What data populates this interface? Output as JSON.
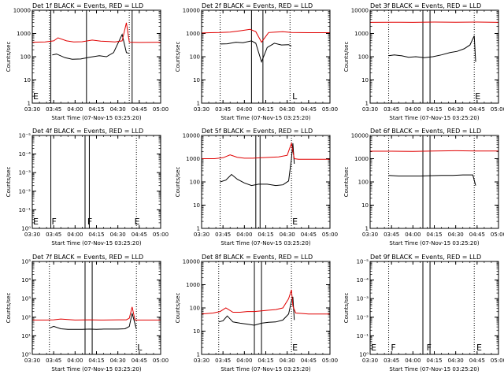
{
  "chart_data": [
    {
      "type": "line",
      "title": "Det 1f BLACK = Events, RED = LLD",
      "xlabel": "Start Time (07-Nov-15 03:25:20)",
      "ylabel": "Counts/sec",
      "scale": "log",
      "ylim": [
        1,
        10000
      ],
      "yticks": [
        "1",
        "10",
        "100",
        "1000",
        "10000"
      ],
      "xlim": [
        "03:30",
        "05:00"
      ],
      "xticks": [
        "03:30",
        "03:45",
        "04:00",
        "04:15",
        "04:30",
        "04:45",
        "05:00"
      ],
      "solid_markers": [
        "03:43",
        "04:08",
        "04:40"
      ],
      "dotted_markers": [
        "03:42",
        "04:38"
      ],
      "flag_labels": [
        [
          "03:30",
          "E"
        ]
      ],
      "series": [
        {
          "name": "Events",
          "color": "#000000",
          "x": [
            "03:44",
            "03:47",
            "03:53",
            "03:58",
            "04:04",
            "04:10",
            "04:17",
            "04:22",
            "04:27",
            "04:33",
            "04:36",
            "04:38"
          ],
          "y": [
            120,
            130,
            90,
            78,
            80,
            95,
            110,
            100,
            150,
            900,
            150,
            140
          ]
        },
        {
          "name": "LLD",
          "color": "#e00000",
          "x": [
            "03:30",
            "03:39",
            "03:45",
            "03:48",
            "03:54",
            "03:59",
            "04:05",
            "04:12",
            "04:18",
            "04:24",
            "04:28",
            "04:33",
            "04:36",
            "04:38",
            "04:45",
            "05:00"
          ],
          "y": [
            420,
            430,
            480,
            650,
            480,
            430,
            440,
            520,
            470,
            450,
            430,
            480,
            2900,
            420,
            410,
            420
          ]
        }
      ]
    },
    {
      "type": "line",
      "title": "Det 2f BLACK = Events, RED = LLD",
      "xlabel": "Start Time (07-Nov-15 03:25:20)",
      "ylabel": "Counts/sec",
      "scale": "log",
      "ylim": [
        1,
        10000
      ],
      "yticks": [
        "1",
        "10",
        "100",
        "1000",
        "10000"
      ],
      "xlim": [
        "03:30",
        "05:00"
      ],
      "xticks": [
        "03:30",
        "03:45",
        "04:00",
        "04:15",
        "04:30",
        "04:45",
        "05:00"
      ],
      "solid_markers": [
        "04:05",
        "04:13"
      ],
      "dotted_markers": [
        "03:43",
        "04:32"
      ],
      "flag_labels": [
        [
          "04:33",
          "L"
        ]
      ],
      "series": [
        {
          "name": "Events",
          "color": "#000000",
          "x": [
            "03:43",
            "03:48",
            "03:54",
            "03:59",
            "04:05",
            "04:08",
            "04:12",
            "04:16",
            "04:21",
            "04:26",
            "04:31",
            "04:33"
          ],
          "y": [
            350,
            360,
            420,
            400,
            480,
            380,
            60,
            250,
            380,
            320,
            330,
            290
          ]
        },
        {
          "name": "LLD",
          "color": "#e00000",
          "x": [
            "03:30",
            "03:36",
            "03:43",
            "03:50",
            "03:57",
            "04:04",
            "04:08",
            "04:12",
            "04:17",
            "04:22",
            "04:27",
            "04:33",
            "04:45",
            "05:00"
          ],
          "y": [
            1050,
            1080,
            1100,
            1150,
            1300,
            1500,
            1200,
            420,
            1100,
            1150,
            1200,
            1100,
            1080,
            1080
          ]
        }
      ]
    },
    {
      "type": "line",
      "title": "Det 3f BLACK = Events, RED = LLD",
      "xlabel": "Start Time (07-Nov-15 03:25:20)",
      "ylabel": "Counts/sec",
      "scale": "log",
      "ylim": [
        1,
        10000
      ],
      "yticks": [
        "1",
        "10",
        "100",
        "1000",
        "10000"
      ],
      "xlim": [
        "03:30",
        "05:00"
      ],
      "xticks": [
        "03:30",
        "03:45",
        "04:00",
        "04:15",
        "04:30",
        "04:45",
        "05:00"
      ],
      "solid_markers": [
        "04:07",
        "04:12"
      ],
      "dotted_markers": [
        "03:43",
        "04:43"
      ],
      "flag_labels": [
        [
          "04:43",
          "E"
        ]
      ],
      "series": [
        {
          "name": "Events",
          "color": "#000000",
          "x": [
            "03:43",
            "03:47",
            "03:52",
            "03:57",
            "04:02",
            "04:08",
            "04:14",
            "04:20",
            "04:26",
            "04:31",
            "04:36",
            "04:40",
            "04:43",
            "04:44"
          ],
          "y": [
            110,
            120,
            110,
            95,
            100,
            90,
            100,
            120,
            150,
            170,
            220,
            320,
            800,
            60
          ]
        },
        {
          "name": "LLD",
          "color": "#e00000",
          "x": [
            "03:30",
            "03:45",
            "04:00",
            "04:15",
            "04:30",
            "04:45",
            "05:00"
          ],
          "y": [
            3000,
            3050,
            3000,
            3100,
            3050,
            3100,
            3000
          ]
        }
      ]
    },
    {
      "type": "line",
      "title": "Det 4f BLACK = Events, RED = LLD",
      "xlabel": "Start Time (07-Nov-15 03:25:20)",
      "ylabel": "Counts/sec",
      "scale": "log",
      "ylim": [
        1,
        10000000000
      ],
      "yticks": [
        "10⁰",
        "10⁻¹",
        "10⁻²",
        "10⁻³",
        "10⁻⁴",
        "10⁻⁵"
      ],
      "xlim": [
        "03:30",
        "05:00"
      ],
      "xticks": [
        "03:30",
        "03:45",
        "04:00",
        "04:15",
        "04:30",
        "04:45",
        "05:00"
      ],
      "solid_markers": [
        "03:43",
        "04:07",
        "04:10"
      ],
      "dotted_markers": [
        "04:43"
      ],
      "flag_labels": [
        [
          "03:30",
          "E"
        ],
        [
          "03:43",
          "F"
        ],
        [
          "04:08",
          "F"
        ],
        [
          "04:41",
          "E"
        ]
      ],
      "series": []
    },
    {
      "type": "line",
      "title": "Det 5f BLACK = Events, RED = LLD",
      "xlabel": "Start Time (07-Nov-15 03:25:20)",
      "ylabel": "Counts/sec",
      "scale": "log",
      "ylim": [
        1,
        10000
      ],
      "yticks": [
        "1",
        "10",
        "100",
        "1000",
        "10000"
      ],
      "xlim": [
        "03:30",
        "05:00"
      ],
      "xticks": [
        "03:30",
        "03:45",
        "04:00",
        "04:15",
        "04:30",
        "04:45",
        "05:00"
      ],
      "solid_markers": [
        "04:08",
        "04:11"
      ],
      "dotted_markers": [
        "03:43",
        "04:33"
      ],
      "flag_labels": [
        [
          "04:33",
          "E"
        ]
      ],
      "series": [
        {
          "name": "Events",
          "color": "#000000",
          "x": [
            "03:43",
            "03:47",
            "03:51",
            "03:55",
            "04:00",
            "04:05",
            "04:10",
            "04:16",
            "04:22",
            "04:27",
            "04:31",
            "04:33",
            "04:34",
            "04:35"
          ],
          "y": [
            100,
            120,
            210,
            130,
            90,
            70,
            80,
            80,
            70,
            75,
            110,
            1000,
            4600,
            600
          ]
        },
        {
          "name": "LLD",
          "color": "#e00000",
          "x": [
            "03:30",
            "03:39",
            "03:45",
            "03:50",
            "03:55",
            "04:00",
            "04:06",
            "04:12",
            "04:18",
            "04:24",
            "04:30",
            "04:33",
            "04:35",
            "04:38",
            "04:45",
            "05:00"
          ],
          "y": [
            1000,
            1000,
            1100,
            1450,
            1150,
            1050,
            1050,
            1100,
            1150,
            1200,
            1400,
            4600,
            1000,
            950,
            950,
            950
          ]
        }
      ]
    },
    {
      "type": "line",
      "title": "Det 6f BLACK = Events, RED = LLD",
      "xlabel": "Start Time (07-Nov-15 03:25:20)",
      "ylabel": "Counts/sec",
      "scale": "log",
      "ylim": [
        1,
        10000
      ],
      "yticks": [
        "1",
        "10",
        "100",
        "1000",
        "10000"
      ],
      "xlim": [
        "03:30",
        "05:00"
      ],
      "xticks": [
        "03:30",
        "03:45",
        "04:00",
        "04:15",
        "04:30",
        "04:45",
        "05:00"
      ],
      "solid_markers": [
        "04:07",
        "04:12"
      ],
      "dotted_markers": [
        "03:43",
        "04:43"
      ],
      "flag_labels": [],
      "series": [
        {
          "name": "Events",
          "color": "#000000",
          "x": [
            "03:43",
            "03:50",
            "03:57",
            "04:05",
            "04:12",
            "04:20",
            "04:28",
            "04:35",
            "04:42",
            "04:44"
          ],
          "y": [
            190,
            180,
            180,
            180,
            185,
            190,
            190,
            200,
            200,
            70
          ]
        },
        {
          "name": "LLD",
          "color": "#e00000",
          "x": [
            "03:30",
            "03:45",
            "04:00",
            "04:15",
            "04:30",
            "04:45",
            "05:00"
          ],
          "y": [
            2100,
            2100,
            2050,
            2150,
            2200,
            2150,
            2150
          ]
        }
      ]
    },
    {
      "type": "line",
      "title": "Det 7f BLACK = Events, RED = LLD",
      "xlabel": "Start Time (07-Nov-15 03:25:20)",
      "ylabel": "Counts/sec",
      "scale": "log",
      "ylim": [
        1,
        100000000
      ],
      "yticks": [
        "10⁰",
        "10¹",
        "10²",
        "10³",
        "10⁴",
        "10⁵"
      ],
      "xlim": [
        "03:30",
        "05:00"
      ],
      "xticks": [
        "03:30",
        "03:45",
        "04:00",
        "04:15",
        "04:30",
        "04:45",
        "05:00"
      ],
      "solid_markers": [
        "04:07",
        "04:12"
      ],
      "dotted_markers": [
        "03:42",
        "04:43"
      ],
      "flag_labels": [
        [
          "04:43",
          "L"
        ]
      ],
      "series": [
        {
          "name": "Events",
          "color": "#000000",
          "x": [
            "03:42",
            "03:45",
            "03:50",
            "03:55",
            "04:00",
            "04:05",
            "04:10",
            "04:15",
            "04:20",
            "04:25",
            "04:30",
            "04:35",
            "04:38",
            "04:40",
            "04:43"
          ],
          "y": [
            180,
            260,
            160,
            140,
            140,
            140,
            150,
            140,
            150,
            150,
            150,
            160,
            250,
            3500,
            150
          ]
        },
        {
          "name": "LLD",
          "color": "#e00000",
          "x": [
            "03:30",
            "03:40",
            "03:45",
            "03:50",
            "04:00",
            "04:10",
            "04:20",
            "04:30",
            "04:36",
            "04:38",
            "04:40",
            "04:42",
            "04:45",
            "05:00"
          ],
          "y": [
            900,
            900,
            950,
            1100,
            900,
            950,
            900,
            950,
            950,
            1300,
            12000,
            900,
            900,
            900
          ]
        }
      ]
    },
    {
      "type": "line",
      "title": "Det 8f BLACK = Events, RED = LLD",
      "xlabel": "Start Time (07-Nov-15 03:25:20)",
      "ylabel": "Counts/sec",
      "scale": "log",
      "ylim": [
        1,
        10000
      ],
      "yticks": [
        "1",
        "10",
        "100",
        "1000",
        "10000"
      ],
      "xlim": [
        "03:30",
        "05:00"
      ],
      "xticks": [
        "03:30",
        "03:45",
        "04:00",
        "04:15",
        "04:30",
        "04:45",
        "05:00"
      ],
      "solid_markers": [
        "04:07",
        "04:12"
      ],
      "dotted_markers": [
        "03:42",
        "04:33"
      ],
      "flag_labels": [
        [
          "04:33",
          "E"
        ]
      ],
      "series": [
        {
          "name": "Events",
          "color": "#000000",
          "x": [
            "03:42",
            "03:45",
            "03:48",
            "03:52",
            "03:57",
            "04:02",
            "04:07",
            "04:12",
            "04:17",
            "04:22",
            "04:27",
            "04:31",
            "04:33",
            "04:34",
            "04:35"
          ],
          "y": [
            25,
            28,
            45,
            25,
            22,
            20,
            18,
            22,
            24,
            25,
            30,
            55,
            200,
            300,
            30
          ]
        },
        {
          "name": "LLD",
          "color": "#e00000",
          "x": [
            "03:30",
            "03:38",
            "03:43",
            "03:47",
            "03:52",
            "03:57",
            "04:02",
            "04:07",
            "04:12",
            "04:17",
            "04:22",
            "04:27",
            "04:31",
            "04:33",
            "04:34",
            "04:36",
            "04:45",
            "05:00"
          ],
          "y": [
            55,
            60,
            70,
            100,
            65,
            65,
            70,
            70,
            75,
            80,
            85,
            100,
            250,
            600,
            120,
            60,
            55,
            55
          ]
        }
      ]
    },
    {
      "type": "line",
      "title": "Det 9f BLACK = Events, RED = LLD",
      "xlabel": "Start Time (07-Nov-15 03:25:20)",
      "ylabel": "Counts/sec",
      "scale": "log",
      "ylim": [
        1,
        10000000000
      ],
      "yticks": [
        "10⁰",
        "10⁻¹",
        "10⁻²",
        "10⁻³",
        "10⁻⁴",
        "10⁻⁵"
      ],
      "xlim": [
        "03:30",
        "05:00"
      ],
      "xticks": [
        "03:30",
        "03:45",
        "04:00",
        "04:15",
        "04:30",
        "04:45",
        "05:00"
      ],
      "solid_markers": [
        "04:07",
        "04:12"
      ],
      "dotted_markers": [
        "03:43",
        "04:43"
      ],
      "flag_labels": [
        [
          "03:30",
          "E"
        ],
        [
          "03:44",
          "F"
        ],
        [
          "04:09",
          "F"
        ],
        [
          "04:44",
          "E"
        ]
      ],
      "series": []
    }
  ]
}
